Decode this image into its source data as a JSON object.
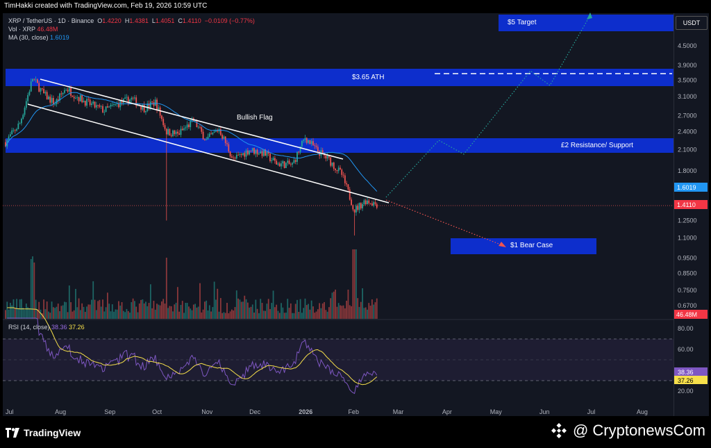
{
  "header": {
    "text": "TimHakki created with TradingView.com, Feb 19, 2026 10:59 UTC"
  },
  "legend": {
    "symbol": "XRP / TetherUS · 1D · Binance",
    "o_label": "O",
    "o": "1.4220",
    "h_label": "H",
    "h": "1.4381",
    "l_label": "L",
    "l": "1.4051",
    "c_label": "C",
    "c": "1.4110",
    "change": "−0.0109 (−0.77%)",
    "vol_label": "Vol · XRP",
    "vol": "46.48M",
    "ma_label": "MA (30, close)",
    "ma": "1.6019",
    "rsi_label": "RSI (14, close)",
    "rsi": "38.36",
    "rsi_ma": "37.26"
  },
  "currency_button": "USDT",
  "annotations": {
    "target": "$5 Target",
    "ath": "$3.65 ATH",
    "resistance": "£2 Resistance/ Support",
    "bear": "$1 Bear Case",
    "flag": "Bullish Flag"
  },
  "price_axis": [
    "4.5000",
    "3.9000",
    "3.5000",
    "3.1000",
    "2.7000",
    "2.4000",
    "2.1000",
    "1.8000",
    "1.2500",
    "1.1000",
    "0.9500",
    "0.8500",
    "0.7500",
    "0.6700"
  ],
  "price_tags": {
    "ma": "1.6019",
    "close": "1.4110",
    "vol": "46.48M",
    "rsi": "38.36",
    "rsi_ma": "37.26"
  },
  "rsi_axis": [
    "80.00",
    "60.00",
    "20.00"
  ],
  "time_axis": [
    "Jul",
    "Aug",
    "Sep",
    "Oct",
    "Nov",
    "Dec",
    "2026",
    "Feb",
    "Mar",
    "Apr",
    "May",
    "Jun",
    "Jul",
    "Aug"
  ],
  "footer": {
    "tv": "TradingView",
    "cn": "@ CryptonewsCom"
  },
  "colors": {
    "up": "#26a69a",
    "down": "#ef5350",
    "zone": "#0d2ecc",
    "ma": "#2196f3",
    "rsi": "#7e57c2",
    "rsi_ma": "#f7e04b",
    "projection": "#26a69a",
    "bear_path": "#ef5350"
  },
  "chart_data": {
    "type": "candlestick",
    "interval": "1D",
    "close_series": [
      {
        "date": "2025-07-01",
        "close": 2.22
      },
      {
        "date": "2025-07-10",
        "close": 2.55
      },
      {
        "date": "2025-07-18",
        "close": 3.55
      },
      {
        "date": "2025-07-25",
        "close": 3.15
      },
      {
        "date": "2025-08-01",
        "close": 2.95
      },
      {
        "date": "2025-08-08",
        "close": 3.3
      },
      {
        "date": "2025-08-15",
        "close": 3.1
      },
      {
        "date": "2025-08-22",
        "close": 2.95
      },
      {
        "date": "2025-09-01",
        "close": 2.8
      },
      {
        "date": "2025-09-10",
        "close": 2.95
      },
      {
        "date": "2025-09-18",
        "close": 3.05
      },
      {
        "date": "2025-09-26",
        "close": 2.85
      },
      {
        "date": "2025-10-03",
        "close": 2.98
      },
      {
        "date": "2025-10-10",
        "close": 2.4
      },
      {
        "date": "2025-10-17",
        "close": 2.35
      },
      {
        "date": "2025-10-27",
        "close": 2.6
      },
      {
        "date": "2025-11-04",
        "close": 2.25
      },
      {
        "date": "2025-11-12",
        "close": 2.45
      },
      {
        "date": "2025-11-21",
        "close": 1.95
      },
      {
        "date": "2025-12-01",
        "close": 2.1
      },
      {
        "date": "2025-12-10",
        "close": 2.05
      },
      {
        "date": "2025-12-18",
        "close": 1.9
      },
      {
        "date": "2025-12-28",
        "close": 1.88
      },
      {
        "date": "2026-01-05",
        "close": 2.3
      },
      {
        "date": "2026-01-12",
        "close": 2.1
      },
      {
        "date": "2026-01-20",
        "close": 1.95
      },
      {
        "date": "2026-01-28",
        "close": 1.75
      },
      {
        "date": "2026-02-05",
        "close": 1.35
      },
      {
        "date": "2026-02-12",
        "close": 1.45
      },
      {
        "date": "2026-02-19",
        "close": 1.411
      }
    ],
    "last_candle": {
      "open": 1.422,
      "high": 1.4381,
      "low": 1.4051,
      "close": 1.411
    },
    "ma_30_last": 1.6019,
    "volume_last": "46.48M",
    "rsi_last": 38.36,
    "rsi_ma_last": 37.26,
    "zones": [
      {
        "label": "$5 Target",
        "low": 4.75,
        "high": 5.25
      },
      {
        "label": "$3.65 ATH",
        "low": 3.35,
        "high": 3.85
      },
      {
        "label": "£2 Resistance/ Support",
        "low": 2.05,
        "high": 2.3
      },
      {
        "label": "$1 Bear Case",
        "low": 0.98,
        "high": 1.1
      }
    ],
    "channel": {
      "label": "Bullish Flag",
      "upper": [
        {
          "date": "2025-07-22",
          "price": 3.6
        },
        {
          "date": "2026-01-27",
          "price": 1.95
        }
      ],
      "lower": [
        {
          "date": "2025-07-22",
          "price": 3.0
        },
        {
          "date": "2026-02-19",
          "price": 1.411
        }
      ]
    },
    "bull_projection": [
      {
        "date": "2026-02-19",
        "price": 1.41
      },
      {
        "date": "2026-03-31",
        "price": 2.3
      },
      {
        "date": "2026-04-12",
        "price": 2.05
      },
      {
        "date": "2026-05-22",
        "price": 3.65
      },
      {
        "date": "2026-06-01",
        "price": 3.4
      },
      {
        "date": "2026-06-26",
        "price": 5.1
      }
    ],
    "bear_projection": [
      {
        "date": "2026-02-19",
        "price": 1.41
      },
      {
        "date": "2026-05-06",
        "price": 1.0
      }
    ],
    "y_scale": "log",
    "ylim": [
      0.62,
      5.3
    ],
    "rsi_levels": [
      70,
      50,
      30
    ]
  }
}
